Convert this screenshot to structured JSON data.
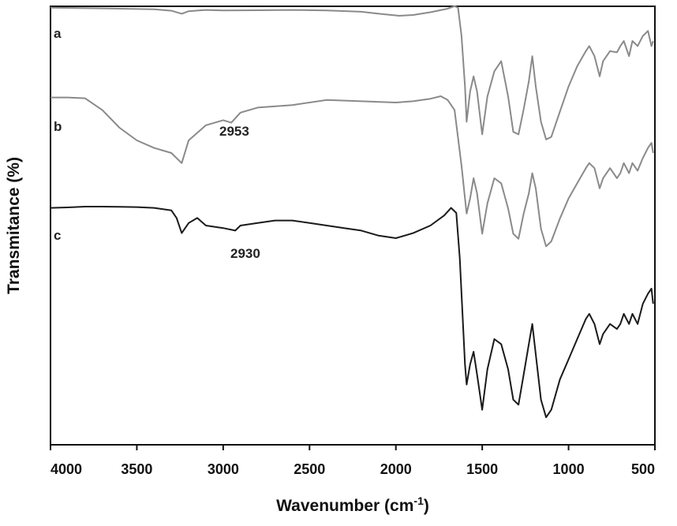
{
  "chart_data": {
    "type": "line",
    "title": "",
    "xlabel": "Wavenumber (cm",
    "xlabel_sup": "-1",
    "xlabel_close": ")",
    "ylabel": "Transmitance (%)",
    "xlim": [
      4000,
      500
    ],
    "x_reversed": true,
    "y_ticks_shown": false,
    "grid": false,
    "x_ticks": [
      "4000",
      "3500",
      "3000",
      "2500",
      "2000",
      "1500",
      "1000",
      "500"
    ],
    "series": [
      {
        "name": "a",
        "color": "#8a8a8a",
        "points": [
          [
            4000,
            3.2
          ],
          [
            3800,
            3.0
          ],
          [
            3600,
            2.8
          ],
          [
            3400,
            2.6
          ],
          [
            3300,
            2.0
          ],
          [
            3240,
            0.8
          ],
          [
            3200,
            1.8
          ],
          [
            3100,
            2.3
          ],
          [
            3000,
            2.1
          ],
          [
            2800,
            2.2
          ],
          [
            2600,
            2.3
          ],
          [
            2400,
            2.1
          ],
          [
            2200,
            1.6
          ],
          [
            2100,
            0.8
          ],
          [
            1980,
            0.0
          ],
          [
            1900,
            0.3
          ],
          [
            1800,
            1.4
          ],
          [
            1700,
            2.8
          ],
          [
            1660,
            3.8
          ],
          [
            1640,
            3.2
          ],
          [
            1620,
            -8.0
          ],
          [
            1600,
            -28.0
          ],
          [
            1590,
            -42.0
          ],
          [
            1570,
            -30.0
          ],
          [
            1550,
            -24.0
          ],
          [
            1530,
            -30.0
          ],
          [
            1500,
            -47.0
          ],
          [
            1470,
            -32.0
          ],
          [
            1430,
            -22.0
          ],
          [
            1390,
            -18.0
          ],
          [
            1350,
            -32.0
          ],
          [
            1320,
            -46.0
          ],
          [
            1290,
            -47.0
          ],
          [
            1260,
            -37.0
          ],
          [
            1230,
            -26.0
          ],
          [
            1210,
            -16.0
          ],
          [
            1190,
            -28.0
          ],
          [
            1160,
            -42.0
          ],
          [
            1130,
            -49.0
          ],
          [
            1100,
            -48.0
          ],
          [
            1050,
            -38.0
          ],
          [
            1000,
            -28.0
          ],
          [
            950,
            -20.0
          ],
          [
            900,
            -14.0
          ],
          [
            880,
            -12.0
          ],
          [
            850,
            -16.0
          ],
          [
            820,
            -24.0
          ],
          [
            800,
            -18.0
          ],
          [
            760,
            -14.0
          ],
          [
            720,
            -14.5
          ],
          [
            700,
            -12.0
          ],
          [
            680,
            -10.0
          ],
          [
            650,
            -16.0
          ],
          [
            630,
            -10.0
          ],
          [
            600,
            -12.0
          ],
          [
            570,
            -8.0
          ],
          [
            540,
            -6.0
          ],
          [
            520,
            -12.0
          ],
          [
            510,
            -10.0
          ]
        ]
      },
      {
        "name": "b",
        "color": "#8a8a8a",
        "points": [
          [
            4000,
            2.0
          ],
          [
            3900,
            2.0
          ],
          [
            3800,
            1.7
          ],
          [
            3700,
            -3.0
          ],
          [
            3600,
            -10.0
          ],
          [
            3500,
            -15.0
          ],
          [
            3400,
            -18.0
          ],
          [
            3300,
            -20.0
          ],
          [
            3240,
            -24.0
          ],
          [
            3200,
            -15.0
          ],
          [
            3100,
            -9.0
          ],
          [
            3000,
            -7.0
          ],
          [
            2953,
            -8.0
          ],
          [
            2900,
            -4.0
          ],
          [
            2800,
            -2.0
          ],
          [
            2600,
            -1.0
          ],
          [
            2400,
            1.0
          ],
          [
            2200,
            0.5
          ],
          [
            2000,
            0.0
          ],
          [
            1900,
            0.5
          ],
          [
            1800,
            1.5
          ],
          [
            1740,
            2.5
          ],
          [
            1700,
            1.0
          ],
          [
            1660,
            -3.0
          ],
          [
            1620,
            -25.0
          ],
          [
            1600,
            -38.0
          ],
          [
            1590,
            -44.0
          ],
          [
            1570,
            -38.0
          ],
          [
            1550,
            -30.0
          ],
          [
            1530,
            -36.0
          ],
          [
            1500,
            -52.0
          ],
          [
            1470,
            -40.0
          ],
          [
            1430,
            -30.0
          ],
          [
            1390,
            -32.0
          ],
          [
            1350,
            -42.0
          ],
          [
            1320,
            -52.0
          ],
          [
            1290,
            -54.0
          ],
          [
            1260,
            -44.0
          ],
          [
            1230,
            -36.0
          ],
          [
            1210,
            -28.0
          ],
          [
            1190,
            -34.0
          ],
          [
            1160,
            -50.0
          ],
          [
            1130,
            -57.0
          ],
          [
            1100,
            -55.0
          ],
          [
            1050,
            -46.0
          ],
          [
            1000,
            -38.0
          ],
          [
            950,
            -32.0
          ],
          [
            900,
            -26.0
          ],
          [
            880,
            -24.0
          ],
          [
            850,
            -26.0
          ],
          [
            820,
            -34.0
          ],
          [
            800,
            -30.0
          ],
          [
            760,
            -26.0
          ],
          [
            720,
            -30.0
          ],
          [
            700,
            -28.0
          ],
          [
            680,
            -24.0
          ],
          [
            650,
            -28.0
          ],
          [
            630,
            -24.0
          ],
          [
            600,
            -27.0
          ],
          [
            570,
            -22.0
          ],
          [
            540,
            -18.0
          ],
          [
            520,
            -16.0
          ],
          [
            510,
            -20.0
          ]
        ]
      },
      {
        "name": "c",
        "color": "#1a1a1a",
        "points": [
          [
            4000,
            2.0
          ],
          [
            3900,
            2.2
          ],
          [
            3800,
            2.5
          ],
          [
            3700,
            2.5
          ],
          [
            3600,
            2.4
          ],
          [
            3500,
            2.3
          ],
          [
            3400,
            2.0
          ],
          [
            3300,
            1.0
          ],
          [
            3270,
            -2.0
          ],
          [
            3240,
            -8.0
          ],
          [
            3200,
            -4.0
          ],
          [
            3150,
            -2.0
          ],
          [
            3100,
            -5.0
          ],
          [
            3000,
            -6.0
          ],
          [
            2930,
            -7.0
          ],
          [
            2900,
            -5.0
          ],
          [
            2800,
            -4.0
          ],
          [
            2700,
            -3.0
          ],
          [
            2600,
            -3.0
          ],
          [
            2500,
            -4.0
          ],
          [
            2400,
            -5.0
          ],
          [
            2300,
            -6.0
          ],
          [
            2200,
            -7.0
          ],
          [
            2100,
            -9.0
          ],
          [
            2000,
            -10.0
          ],
          [
            1900,
            -8.0
          ],
          [
            1800,
            -5.0
          ],
          [
            1720,
            -1.0
          ],
          [
            1680,
            2.0
          ],
          [
            1650,
            0.0
          ],
          [
            1630,
            -18.0
          ],
          [
            1610,
            -46.0
          ],
          [
            1600,
            -60.0
          ],
          [
            1590,
            -68.0
          ],
          [
            1570,
            -60.0
          ],
          [
            1550,
            -55.0
          ],
          [
            1530,
            -64.0
          ],
          [
            1500,
            -78.0
          ],
          [
            1470,
            -62.0
          ],
          [
            1430,
            -50.0
          ],
          [
            1390,
            -52.0
          ],
          [
            1350,
            -62.0
          ],
          [
            1320,
            -74.0
          ],
          [
            1290,
            -76.0
          ],
          [
            1260,
            -64.0
          ],
          [
            1230,
            -52.0
          ],
          [
            1210,
            -44.0
          ],
          [
            1190,
            -56.0
          ],
          [
            1160,
            -74.0
          ],
          [
            1130,
            -81.0
          ],
          [
            1100,
            -78.0
          ],
          [
            1050,
            -66.0
          ],
          [
            1000,
            -58.0
          ],
          [
            950,
            -50.0
          ],
          [
            900,
            -42.0
          ],
          [
            880,
            -40.0
          ],
          [
            850,
            -44.0
          ],
          [
            820,
            -52.0
          ],
          [
            800,
            -48.0
          ],
          [
            760,
            -44.0
          ],
          [
            720,
            -46.0
          ],
          [
            700,
            -44.0
          ],
          [
            680,
            -40.0
          ],
          [
            650,
            -44.0
          ],
          [
            630,
            -40.0
          ],
          [
            600,
            -44.0
          ],
          [
            570,
            -36.0
          ],
          [
            540,
            -32.0
          ],
          [
            520,
            -30.0
          ],
          [
            510,
            -36.0
          ]
        ]
      }
    ],
    "annotations": [
      {
        "text": "2953",
        "x": 2953,
        "series": "b"
      },
      {
        "text": "2930",
        "x": 2930,
        "series": "c"
      }
    ]
  }
}
